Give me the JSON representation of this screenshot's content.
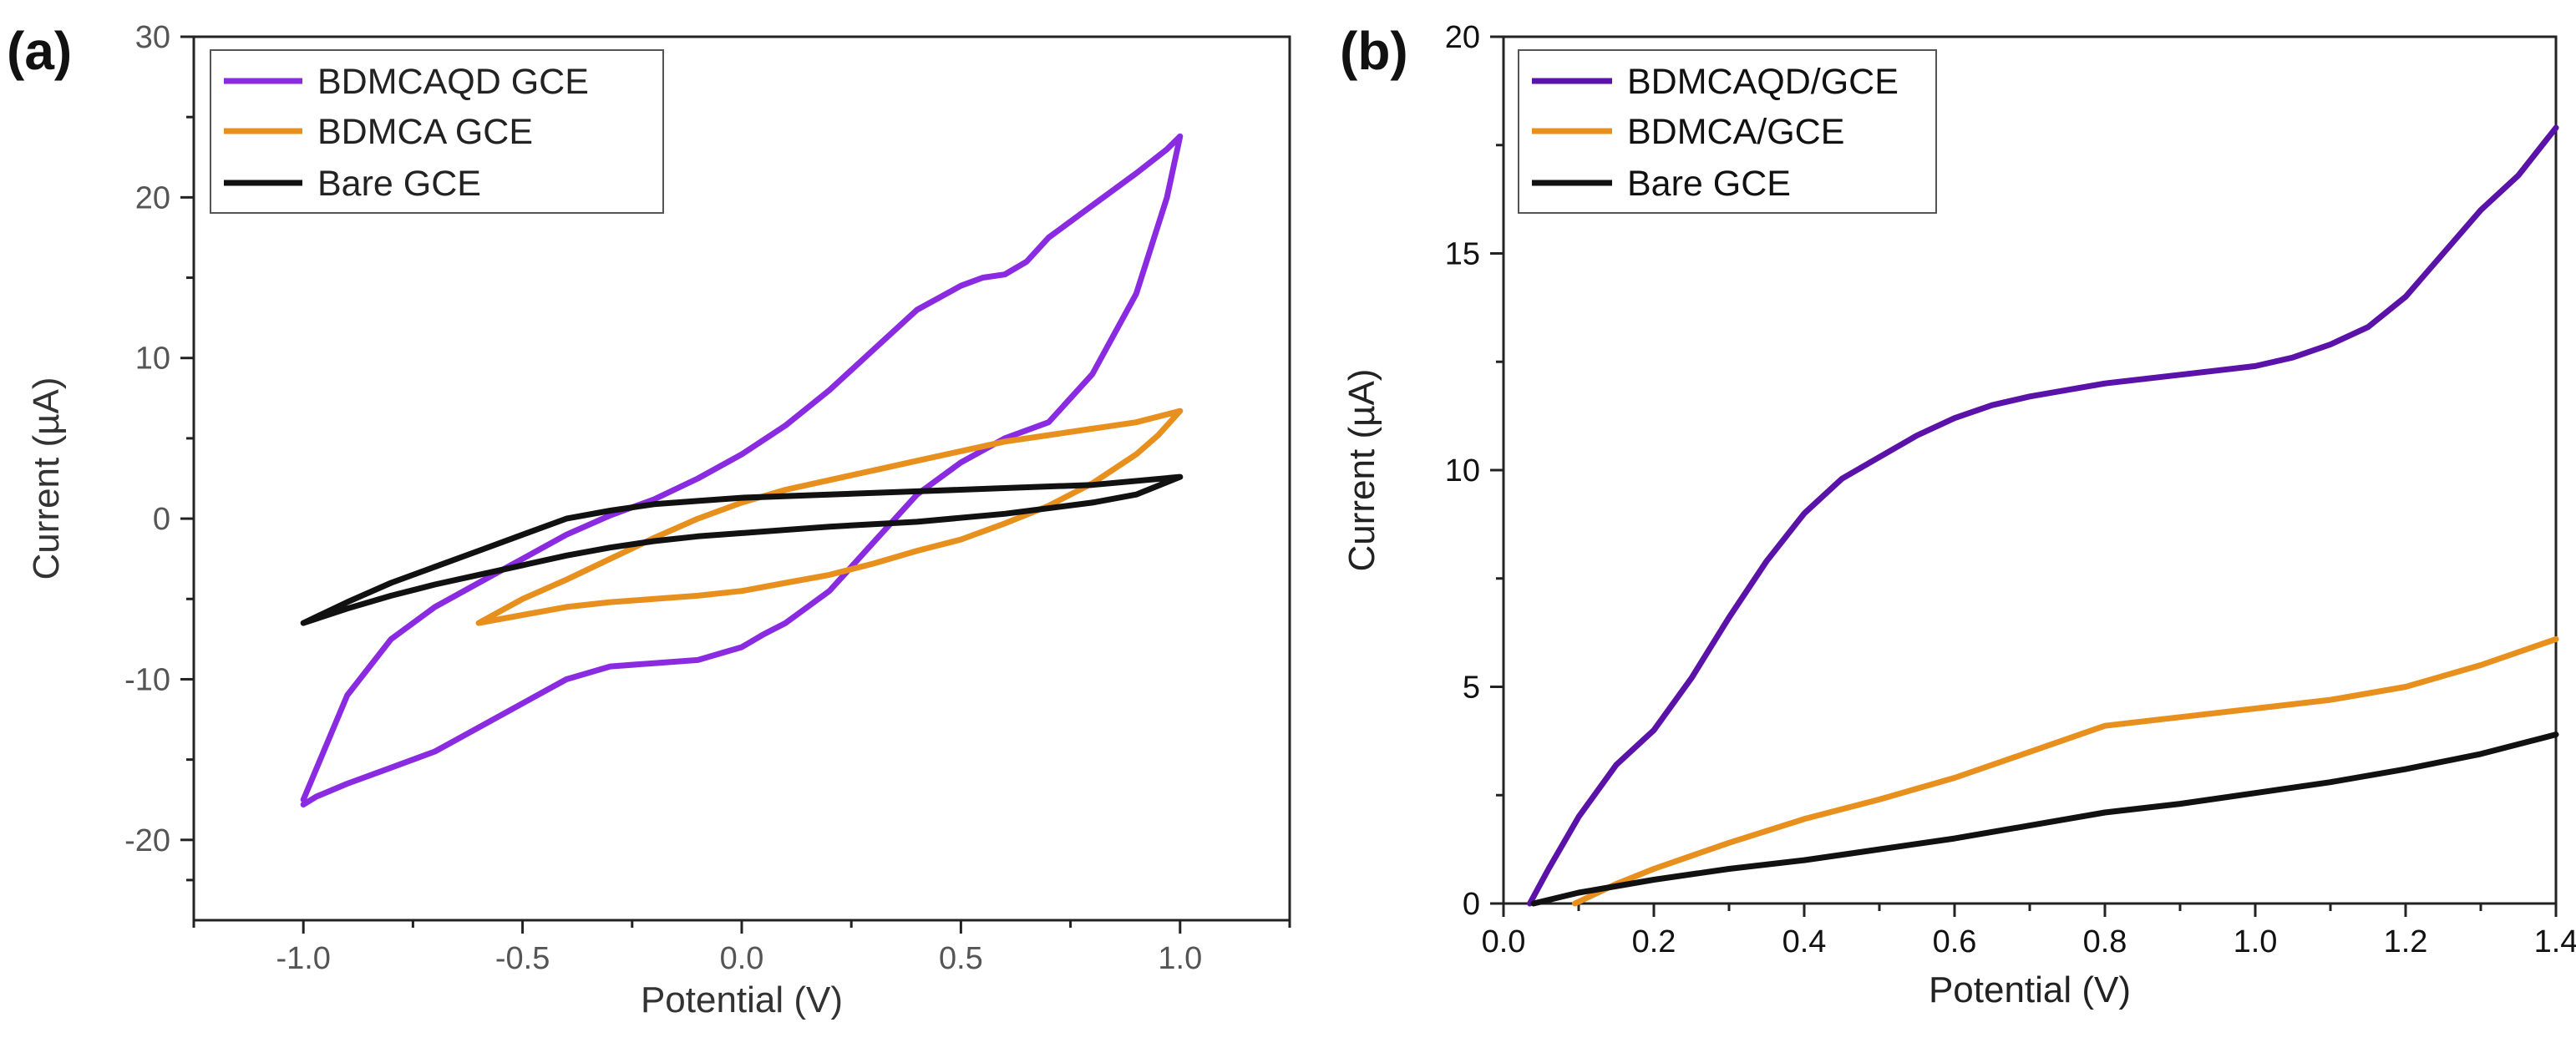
{
  "colors": {
    "purple": "#8a2be2",
    "orange": "#e8901e",
    "black": "#111111",
    "purple_b": "#5b12a8"
  },
  "chart_data": [
    {
      "id": "a",
      "panel_label": "(a)",
      "type": "line",
      "title": "",
      "xlabel": "Potential (V)",
      "ylabel": "Current (µA)",
      "xlim": [
        -1.25,
        1.25
      ],
      "ylim": [
        -25,
        30
      ],
      "xticks": [
        -1.0,
        -0.5,
        0.0,
        0.5,
        1.0
      ],
      "xtick_labels": [
        "-1.0",
        "-0.5",
        "0.0",
        "0.5",
        "1.0"
      ],
      "yticks": [
        -20,
        -10,
        0,
        10,
        20,
        30
      ],
      "ytick_labels": [
        "-20",
        "-10",
        "0",
        "10",
        "20",
        "30"
      ],
      "grid": false,
      "legend_position": "top-left",
      "series": [
        {
          "name": "BDMCAQD GCE",
          "color": "#8a2be2",
          "x": [
            -1.0,
            -0.9,
            -0.8,
            -0.7,
            -0.6,
            -0.5,
            -0.4,
            -0.3,
            -0.2,
            -0.1,
            0.0,
            0.1,
            0.2,
            0.3,
            0.4,
            0.5,
            0.55,
            0.6,
            0.65,
            0.7,
            0.8,
            0.9,
            0.97,
            1.0,
            0.97,
            0.9,
            0.8,
            0.7,
            0.6,
            0.5,
            0.4,
            0.3,
            0.2,
            0.1,
            0.05,
            0.0,
            -0.1,
            -0.2,
            -0.3,
            -0.4,
            -0.5,
            -0.6,
            -0.7,
            -0.8,
            -0.9,
            -0.97,
            -1.0
          ],
          "y": [
            -17.5,
            -11,
            -7.5,
            -5.5,
            -4,
            -2.5,
            -1,
            0.2,
            1.2,
            2.5,
            4,
            5.8,
            8,
            10.5,
            13,
            14.5,
            15,
            15.2,
            16,
            17.5,
            19.5,
            21.5,
            23,
            23.8,
            20,
            14,
            9,
            6,
            5,
            3.5,
            1.5,
            -1.5,
            -4.5,
            -6.5,
            -7.2,
            -8,
            -8.8,
            -9,
            -9.2,
            -10,
            -11.5,
            -13,
            -14.5,
            -15.5,
            -16.5,
            -17.3,
            -17.8
          ]
        },
        {
          "name": "BDMCA GCE",
          "color": "#e8901e",
          "x": [
            -0.6,
            -0.5,
            -0.4,
            -0.3,
            -0.2,
            -0.1,
            0.0,
            0.1,
            0.2,
            0.3,
            0.4,
            0.5,
            0.6,
            0.7,
            0.8,
            0.9,
            1.0,
            0.95,
            0.9,
            0.8,
            0.7,
            0.6,
            0.5,
            0.4,
            0.3,
            0.2,
            0.1,
            0.0,
            -0.1,
            -0.2,
            -0.3,
            -0.4,
            -0.5,
            -0.6
          ],
          "y": [
            -6.5,
            -5,
            -3.8,
            -2.5,
            -1.2,
            0,
            1,
            1.8,
            2.4,
            3,
            3.6,
            4.2,
            4.8,
            5.2,
            5.6,
            6,
            6.7,
            5.2,
            4,
            2.2,
            0.8,
            -0.3,
            -1.3,
            -2,
            -2.8,
            -3.5,
            -4,
            -4.5,
            -4.8,
            -5,
            -5.2,
            -5.5,
            -6,
            -6.5
          ]
        },
        {
          "name": "Bare GCE",
          "color": "#111111",
          "x": [
            -1.0,
            -0.9,
            -0.8,
            -0.7,
            -0.6,
            -0.5,
            -0.4,
            -0.3,
            -0.2,
            -0.1,
            0.0,
            0.2,
            0.4,
            0.6,
            0.8,
            1.0,
            0.9,
            0.8,
            0.6,
            0.4,
            0.2,
            0.0,
            -0.1,
            -0.2,
            -0.3,
            -0.4,
            -0.5,
            -0.6,
            -0.7,
            -0.8,
            -0.9,
            -1.0
          ],
          "y": [
            -6.5,
            -5.2,
            -4,
            -3,
            -2,
            -1,
            0,
            0.5,
            0.9,
            1.1,
            1.3,
            1.5,
            1.7,
            1.9,
            2.1,
            2.6,
            1.5,
            1,
            0.3,
            -0.2,
            -0.5,
            -0.9,
            -1.1,
            -1.4,
            -1.8,
            -2.3,
            -2.9,
            -3.5,
            -4.1,
            -4.8,
            -5.6,
            -6.5
          ]
        }
      ]
    },
    {
      "id": "b",
      "panel_label": "(b)",
      "type": "line",
      "title": "",
      "xlabel": "Potential (V)",
      "ylabel": "Current (µA)",
      "xlim": [
        0.0,
        1.4
      ],
      "ylim": [
        0,
        20
      ],
      "xticks": [
        0.0,
        0.2,
        0.4,
        0.6,
        0.8,
        1.0,
        1.2,
        1.4
      ],
      "xtick_labels": [
        "0.0",
        "0.2",
        "0.4",
        "0.6",
        "0.8",
        "1.0",
        "1.2",
        "1.4"
      ],
      "yticks": [
        0,
        5,
        10,
        15,
        20
      ],
      "ytick_labels": [
        "0",
        "5",
        "10",
        "15",
        "20"
      ],
      "grid": false,
      "legend_position": "top-left",
      "series": [
        {
          "name": "BDMCAQD/GCE",
          "color": "#5b12a8",
          "x": [
            0.035,
            0.06,
            0.1,
            0.15,
            0.2,
            0.25,
            0.3,
            0.35,
            0.4,
            0.45,
            0.5,
            0.55,
            0.6,
            0.65,
            0.7,
            0.8,
            0.9,
            1.0,
            1.05,
            1.1,
            1.15,
            1.2,
            1.25,
            1.3,
            1.35,
            1.4
          ],
          "y": [
            0,
            0.8,
            2.0,
            3.2,
            4.0,
            5.2,
            6.6,
            7.9,
            9.0,
            9.8,
            10.3,
            10.8,
            11.2,
            11.5,
            11.7,
            12.0,
            12.2,
            12.4,
            12.6,
            12.9,
            13.3,
            14.0,
            15.0,
            16.0,
            16.8,
            17.9
          ]
        },
        {
          "name": "BDMCA/GCE",
          "color": "#e8901e",
          "x": [
            0.095,
            0.15,
            0.2,
            0.3,
            0.4,
            0.5,
            0.6,
            0.7,
            0.8,
            0.9,
            1.0,
            1.1,
            1.2,
            1.3,
            1.4
          ],
          "y": [
            0,
            0.45,
            0.8,
            1.4,
            1.95,
            2.4,
            2.9,
            3.5,
            4.1,
            4.3,
            4.5,
            4.7,
            5.0,
            5.5,
            6.1
          ]
        },
        {
          "name": "Bare GCE",
          "color": "#111111",
          "x": [
            0.04,
            0.1,
            0.2,
            0.3,
            0.4,
            0.5,
            0.6,
            0.7,
            0.8,
            0.9,
            1.0,
            1.1,
            1.2,
            1.3,
            1.4
          ],
          "y": [
            0,
            0.25,
            0.55,
            0.8,
            1.0,
            1.25,
            1.5,
            1.8,
            2.1,
            2.3,
            2.55,
            2.8,
            3.1,
            3.45,
            3.9
          ]
        }
      ]
    }
  ]
}
